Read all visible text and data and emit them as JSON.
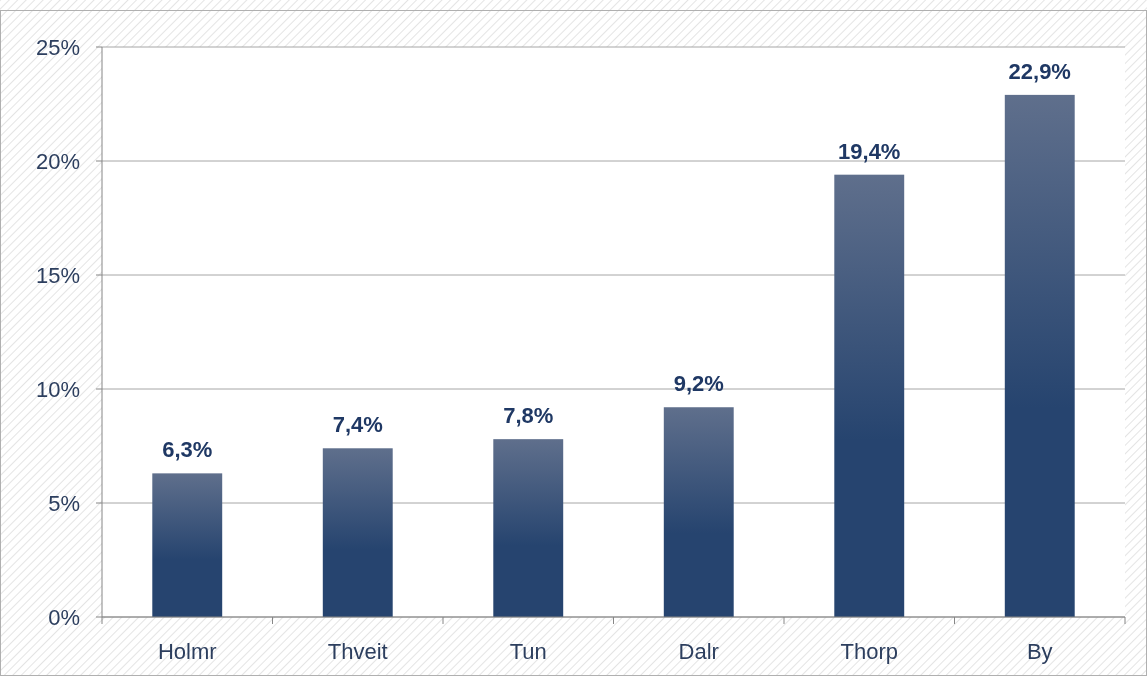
{
  "chart_data": {
    "type": "bar",
    "categories": [
      "Holmr",
      "Thveit",
      "Tun",
      "Dalr",
      "Thorp",
      "By"
    ],
    "values": [
      6.3,
      7.4,
      7.8,
      9.2,
      19.4,
      22.9
    ],
    "value_labels": [
      "6,3%",
      "7,4%",
      "7,8%",
      "9,2%",
      "19,4%",
      "22,9%"
    ],
    "color": "#26446f",
    "ylim": [
      0,
      25
    ],
    "yticks": [
      {
        "value": 0,
        "label": "0%"
      },
      {
        "value": 5,
        "label": "5%"
      },
      {
        "value": 10,
        "label": "10%"
      },
      {
        "value": 15,
        "label": "15%"
      },
      {
        "value": 20,
        "label": "20%"
      },
      {
        "value": 25,
        "label": "25%"
      }
    ],
    "grid": "y"
  }
}
